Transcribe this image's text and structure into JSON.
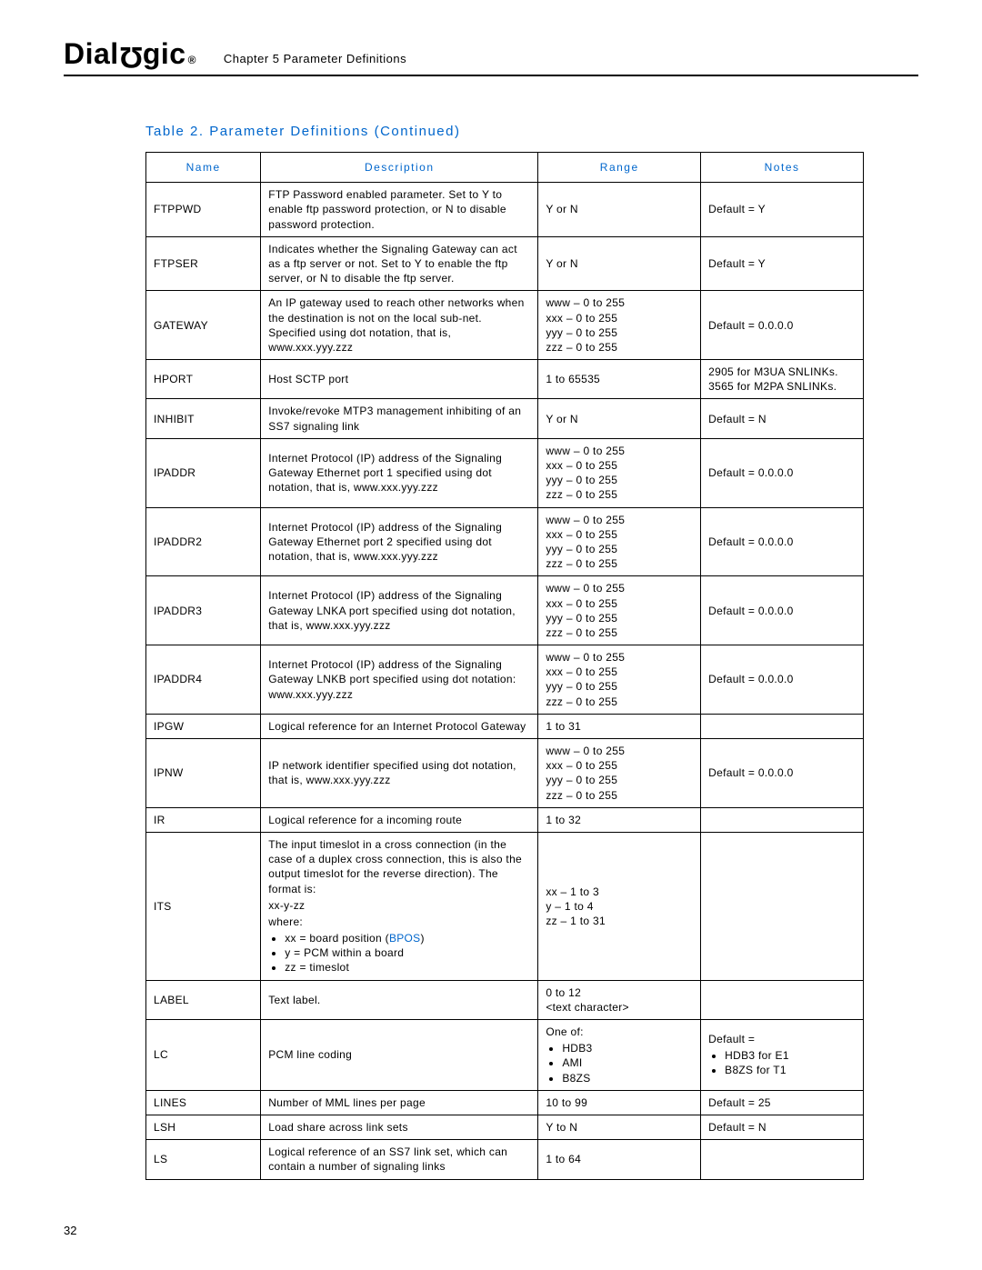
{
  "header": {
    "logo_text_pre": "Dial",
    "logo_text_post": "gic",
    "chapter": "Chapter 5 Parameter Definitions"
  },
  "table_caption": "Table 2.  Parameter Definitions (Continued)",
  "columns": {
    "name": "Name",
    "description": "Description",
    "range": "Range",
    "notes": "Notes"
  },
  "rows": {
    "ftppwd": {
      "name": "FTPPWD",
      "desc": "FTP Password enabled parameter. Set to Y to enable ftp password protection, or N to disable password protection.",
      "range": "Y or N",
      "notes": "Default = Y"
    },
    "ftpser": {
      "name": "FTPSER",
      "desc": "Indicates whether the Signaling Gateway can act as a ftp server or not. Set to Y to enable the ftp server, or N to disable the ftp server.",
      "range": "Y or N",
      "notes": "Default = Y"
    },
    "gateway": {
      "name": "GATEWAY",
      "desc": "An IP gateway used to reach other networks when the destination is not on the local sub-net. Specified using dot notation, that is, www.xxx.yyy.zzz",
      "range_l1": "www – 0 to 255",
      "range_l2": "xxx – 0 to 255",
      "range_l3": "yyy – 0 to 255",
      "range_l4": "zzz – 0 to 255",
      "notes": "Default = 0.0.0.0"
    },
    "hport": {
      "name": "HPORT",
      "desc": "Host SCTP port",
      "range": "1 to 65535",
      "notes_l1": "2905 for M3UA SNLINKs.",
      "notes_l2": "3565 for M2PA SNLINKs."
    },
    "inhibit": {
      "name": "INHIBIT",
      "desc": "Invoke/revoke MTP3 management inhibiting of an SS7 signaling link",
      "range": "Y or N",
      "notes": "Default = N"
    },
    "ipaddr": {
      "name": "IPADDR",
      "desc": "Internet Protocol (IP) address of the Signaling Gateway Ethernet port 1 specified using dot notation, that is, www.xxx.yyy.zzz",
      "range_l1": "www – 0 to 255",
      "range_l2": "xxx – 0 to 255",
      "range_l3": "yyy – 0 to 255",
      "range_l4": "zzz – 0 to 255",
      "notes": "Default = 0.0.0.0"
    },
    "ipaddr2": {
      "name": "IPADDR2",
      "desc": "Internet Protocol (IP) address of the Signaling Gateway Ethernet port 2 specified using dot notation, that is, www.xxx.yyy.zzz",
      "range_l1": "www – 0 to 255",
      "range_l2": "xxx – 0 to 255",
      "range_l3": "yyy – 0 to 255",
      "range_l4": "zzz – 0 to 255",
      "notes": "Default = 0.0.0.0"
    },
    "ipaddr3": {
      "name": "IPADDR3",
      "desc": "Internet Protocol (IP) address of the Signaling Gateway LNKA port specified using dot notation, that is, www.xxx.yyy.zzz",
      "range_l1": "www – 0 to 255",
      "range_l2": "xxx – 0 to 255",
      "range_l3": "yyy – 0 to 255",
      "range_l4": "zzz – 0 to 255",
      "notes": "Default = 0.0.0.0"
    },
    "ipaddr4": {
      "name": "IPADDR4",
      "desc": "Internet Protocol (IP) address of the Signaling Gateway LNKB port specified using dot notation: www.xxx.yyy.zzz",
      "range_l1": "www – 0 to 255",
      "range_l2": "xxx – 0 to 255",
      "range_l3": "yyy – 0 to 255",
      "range_l4": "zzz – 0 to 255",
      "notes": "Default = 0.0.0.0"
    },
    "ipgw": {
      "name": "IPGW",
      "desc": "Logical reference for an Internet Protocol Gateway",
      "range": "1 to 31",
      "notes": ""
    },
    "ipnw": {
      "name": "IPNW",
      "desc": "IP network identifier specified using dot notation, that is, www.xxx.yyy.zzz",
      "range_l1": "www – 0 to 255",
      "range_l2": "xxx – 0 to 255",
      "range_l3": "yyy – 0 to 255",
      "range_l4": "zzz – 0 to 255",
      "notes": "Default = 0.0.0.0"
    },
    "ir": {
      "name": "IR",
      "desc": "Logical reference for a incoming route",
      "range": "1 to 32",
      "notes": ""
    },
    "its": {
      "name": "ITS",
      "desc_p1": "The input timeslot in a cross connection (in the case of a duplex cross connection, this is also the output timeslot for the reverse direction). The format is:",
      "desc_fmt": "xx-y-zz",
      "desc_where": "where:",
      "desc_b1_pre": "xx = board position (",
      "desc_b1_link": "BPOS",
      "desc_b1_post": ")",
      "desc_b2": "y = PCM within a board",
      "desc_b3": "zz = timeslot",
      "range_l1": "xx – 1 to 3",
      "range_l2": "y – 1 to 4",
      "range_l3": "zz – 1 to 31",
      "notes": ""
    },
    "label": {
      "name": "LABEL",
      "desc": "Text label.",
      "range_l1": "0 to 12",
      "range_l2": "<text character>",
      "notes": ""
    },
    "lc": {
      "name": "LC",
      "desc": "PCM line coding",
      "range_head": "One of:",
      "range_b1": "HDB3",
      "range_b2": "AMI",
      "range_b3": "B8ZS",
      "notes_head": "Default =",
      "notes_b1": "HDB3 for E1",
      "notes_b2": "B8ZS for T1"
    },
    "lines": {
      "name": "LINES",
      "desc": "Number of MML lines per page",
      "range": "10 to 99",
      "notes": "Default = 25"
    },
    "lsh": {
      "name": "LSH",
      "desc": "Load share across link sets",
      "range": "Y to N",
      "notes": "Default = N"
    },
    "ls": {
      "name": "LS",
      "desc": "Logical reference of an SS7 link set, which can contain a number of signaling links",
      "range": "1 to 64",
      "notes": ""
    }
  },
  "page_number": "32"
}
